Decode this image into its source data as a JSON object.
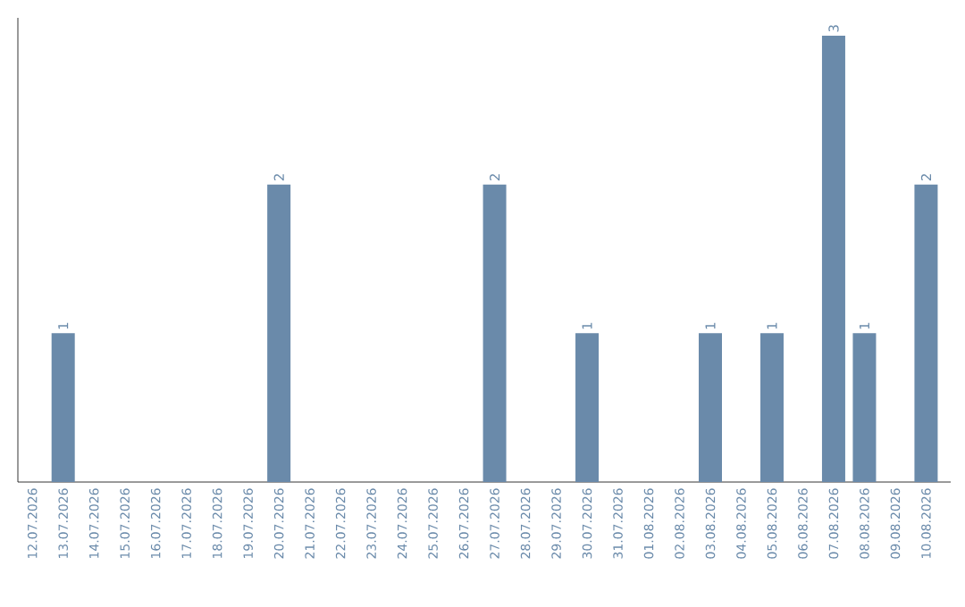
{
  "chart_data": {
    "type": "bar",
    "categories": [
      "12.07.2026",
      "13.07.2026",
      "14.07.2026",
      "15.07.2026",
      "16.07.2026",
      "17.07.2026",
      "18.07.2026",
      "19.07.2026",
      "20.07.2026",
      "21.07.2026",
      "22.07.2026",
      "23.07.2026",
      "24.07.2026",
      "25.07.2026",
      "26.07.2026",
      "27.07.2026",
      "28.07.2026",
      "29.07.2026",
      "30.07.2026",
      "31.07.2026",
      "01.08.2026",
      "02.08.2026",
      "03.08.2026",
      "04.08.2026",
      "05.08.2026",
      "06.08.2026",
      "07.08.2026",
      "08.08.2026",
      "09.08.2026",
      "10.08.2026"
    ],
    "values": [
      0,
      1,
      0,
      0,
      0,
      0,
      0,
      0,
      2,
      0,
      0,
      0,
      0,
      0,
      0,
      2,
      0,
      0,
      1,
      0,
      0,
      0,
      1,
      0,
      1,
      0,
      3,
      1,
      0,
      2
    ],
    "value_labels": [
      null,
      "1",
      null,
      null,
      null,
      null,
      null,
      null,
      "2",
      null,
      null,
      null,
      null,
      null,
      null,
      "2",
      null,
      null,
      "1",
      null,
      null,
      null,
      "1",
      null,
      "1",
      null,
      "3",
      "1",
      null,
      "2"
    ],
    "color": "#6a8aaa",
    "ylim": [
      0,
      3.12
    ],
    "tick_labels": "x"
  }
}
